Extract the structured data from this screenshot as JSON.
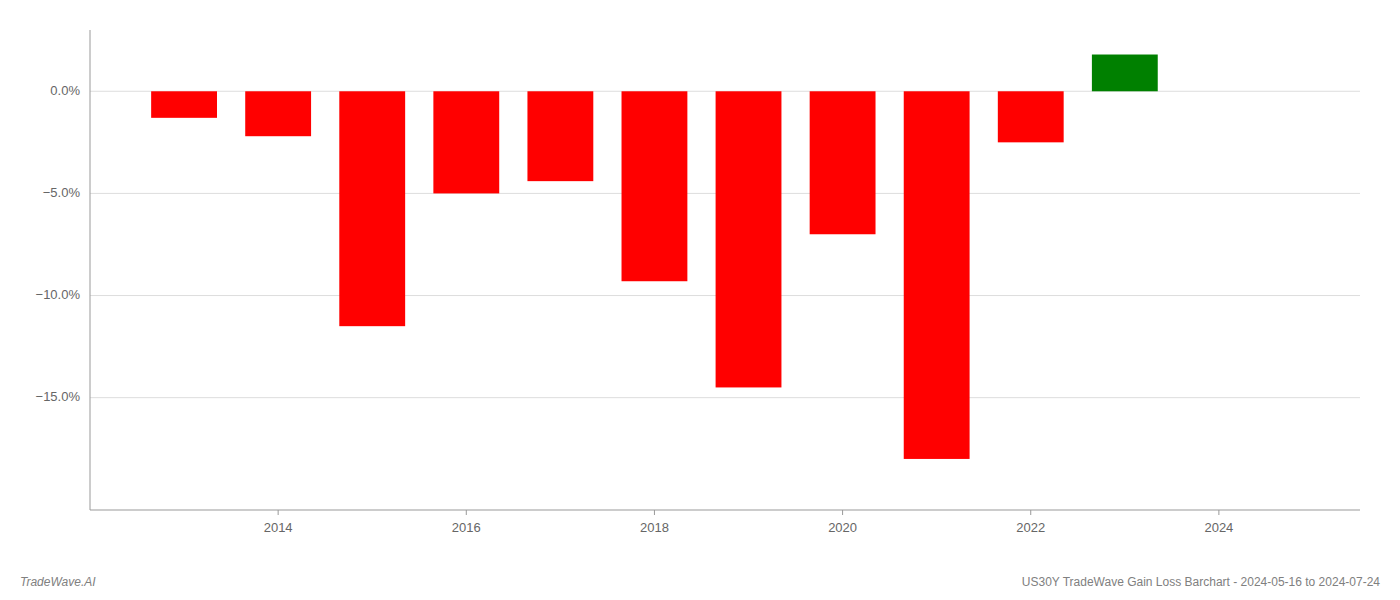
{
  "chart_data": {
    "type": "bar",
    "title": "US30Y TradeWave Gain Loss Barchart - 2024-05-16 to 2024-07-24",
    "annotations": [
      "TradeWave.AI"
    ],
    "x": [
      2013,
      2014,
      2015,
      2016,
      2017,
      2018,
      2019,
      2020,
      2021,
      2022,
      2023
    ],
    "values": [
      -1.3,
      -2.2,
      -11.5,
      -5.0,
      -4.4,
      -9.3,
      -14.5,
      -7.0,
      -18.0,
      -2.5,
      1.8
    ],
    "colors": [
      "#ff0000",
      "#ff0000",
      "#ff0000",
      "#ff0000",
      "#ff0000",
      "#ff0000",
      "#ff0000",
      "#ff0000",
      "#ff0000",
      "#ff0000",
      "#008000"
    ],
    "xlim": [
      2012.0,
      2025.5
    ],
    "xticks": [
      2014,
      2016,
      2018,
      2020,
      2022,
      2024
    ],
    "ylim": [
      -20.5,
      3.0
    ],
    "yticks": [
      {
        "value": 0,
        "label": "0.0%"
      },
      {
        "value": -5,
        "label": "−5.0%"
      },
      {
        "value": -10,
        "label": "−10.0%"
      },
      {
        "value": -15,
        "label": "−15.0%"
      }
    ],
    "grid": true
  }
}
